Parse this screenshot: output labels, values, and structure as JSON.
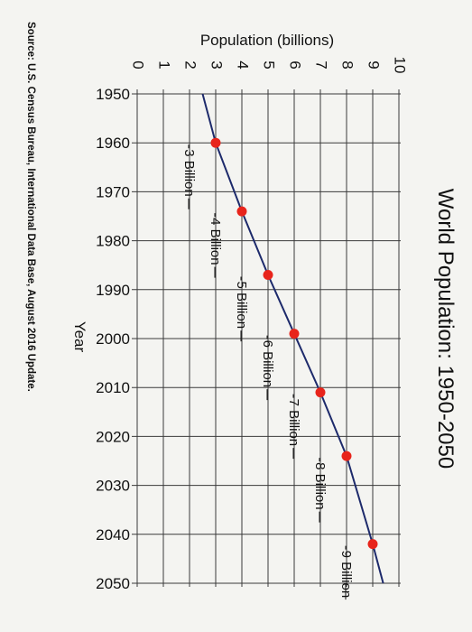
{
  "chart_data": {
    "type": "line",
    "title": "World Population: 1950-2050",
    "xlabel": "Year",
    "ylabel": "Population (billions)",
    "xlim": [
      1950,
      2050
    ],
    "ylim": [
      0,
      10
    ],
    "x_ticks": [
      "1950",
      "1960",
      "1970",
      "1980",
      "1990",
      "2000",
      "2010",
      "2020",
      "2030",
      "2040",
      "2050"
    ],
    "y_ticks": [
      "0",
      "1",
      "2",
      "3",
      "4",
      "5",
      "6",
      "7",
      "8",
      "9",
      "10"
    ],
    "grid": true,
    "series": [
      {
        "x": [
          1950,
          1960,
          1974,
          1987,
          1999,
          2011,
          2024,
          2042,
          2050
        ],
        "y": [
          2.5,
          3.0,
          4.0,
          5.0,
          6.0,
          7.0,
          8.0,
          9.0,
          9.4
        ],
        "color": "#1d2a6b"
      }
    ],
    "milestones": [
      {
        "x": 1960,
        "y": 3,
        "label": "3 Billion"
      },
      {
        "x": 1974,
        "y": 4,
        "label": "4 Billion"
      },
      {
        "x": 1987,
        "y": 5,
        "label": "5 Billion"
      },
      {
        "x": 1999,
        "y": 6,
        "label": "6 Billion"
      },
      {
        "x": 2011,
        "y": 7,
        "label": "7 Billion"
      },
      {
        "x": 2024,
        "y": 8,
        "label": "8 Billion"
      },
      {
        "x": 2042,
        "y": 9,
        "label": "9 Billion"
      }
    ],
    "marker_color": "#e8241b",
    "source": "Source: U.S. Census Bureau, International Data Base, August 2016 Update."
  }
}
